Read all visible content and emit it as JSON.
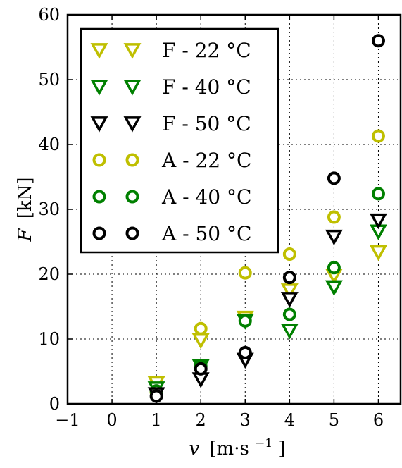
{
  "chart_data": {
    "type": "scatter",
    "xlabel_var": "v",
    "xlabel_unit": "[m·s",
    "xlabel_exp": "−1",
    "xlabel_close": "]",
    "ylabel_var": "F",
    "ylabel_unit": "[kN]",
    "xlim": [
      -1,
      6.5
    ],
    "ylim": [
      0,
      60
    ],
    "xticks": [
      -1,
      0,
      1,
      2,
      3,
      4,
      5,
      6
    ],
    "xtick_labels": [
      "−1",
      "0",
      "1",
      "2",
      "3",
      "4",
      "5",
      "6"
    ],
    "yticks": [
      0,
      10,
      20,
      30,
      40,
      50,
      60
    ],
    "ytick_labels": [
      "0",
      "10",
      "20",
      "30",
      "40",
      "50",
      "60"
    ],
    "grid": true,
    "legend_position": "top-left",
    "series": [
      {
        "name": "F - 22 °C",
        "marker": "triangle-down",
        "color": "#bfbf00",
        "points": [
          [
            1,
            3.2
          ],
          [
            2,
            9.8
          ],
          [
            3,
            13.3
          ],
          [
            4,
            17.5
          ],
          [
            5,
            19.8
          ],
          [
            6,
            23.4
          ]
        ]
      },
      {
        "name": "F - 40 °C",
        "marker": "triangle-down",
        "color": "#008000",
        "points": [
          [
            1,
            2.4
          ],
          [
            2,
            5.8
          ],
          [
            3,
            12.8
          ],
          [
            4,
            11.3
          ],
          [
            5,
            18.0
          ],
          [
            6,
            26.6
          ]
        ]
      },
      {
        "name": "F - 50 °C",
        "marker": "triangle-down",
        "color": "#000000",
        "points": [
          [
            1,
            1.5
          ],
          [
            2,
            3.8
          ],
          [
            3,
            6.8
          ],
          [
            4,
            16.2
          ],
          [
            5,
            25.8
          ],
          [
            6,
            28.3
          ]
        ]
      },
      {
        "name": "A - 22 °C",
        "marker": "circle",
        "color": "#bfbf00",
        "points": [
          [
            1,
            1.8
          ],
          [
            2,
            11.6
          ],
          [
            3,
            20.2
          ],
          [
            4,
            23.1
          ],
          [
            5,
            28.8
          ],
          [
            6,
            41.3
          ]
        ]
      },
      {
        "name": "A - 40 °C",
        "marker": "circle",
        "color": "#008000",
        "points": [
          [
            1,
            2.0
          ],
          [
            2,
            5.8
          ],
          [
            3,
            12.8
          ],
          [
            4,
            13.8
          ],
          [
            5,
            21.0
          ],
          [
            6,
            32.4
          ]
        ]
      },
      {
        "name": "A - 50 °C",
        "marker": "circle",
        "color": "#000000",
        "points": [
          [
            1,
            1.2
          ],
          [
            2,
            5.4
          ],
          [
            3,
            7.9
          ],
          [
            4,
            19.5
          ],
          [
            5,
            34.8
          ],
          [
            6,
            56.0
          ]
        ]
      }
    ]
  }
}
